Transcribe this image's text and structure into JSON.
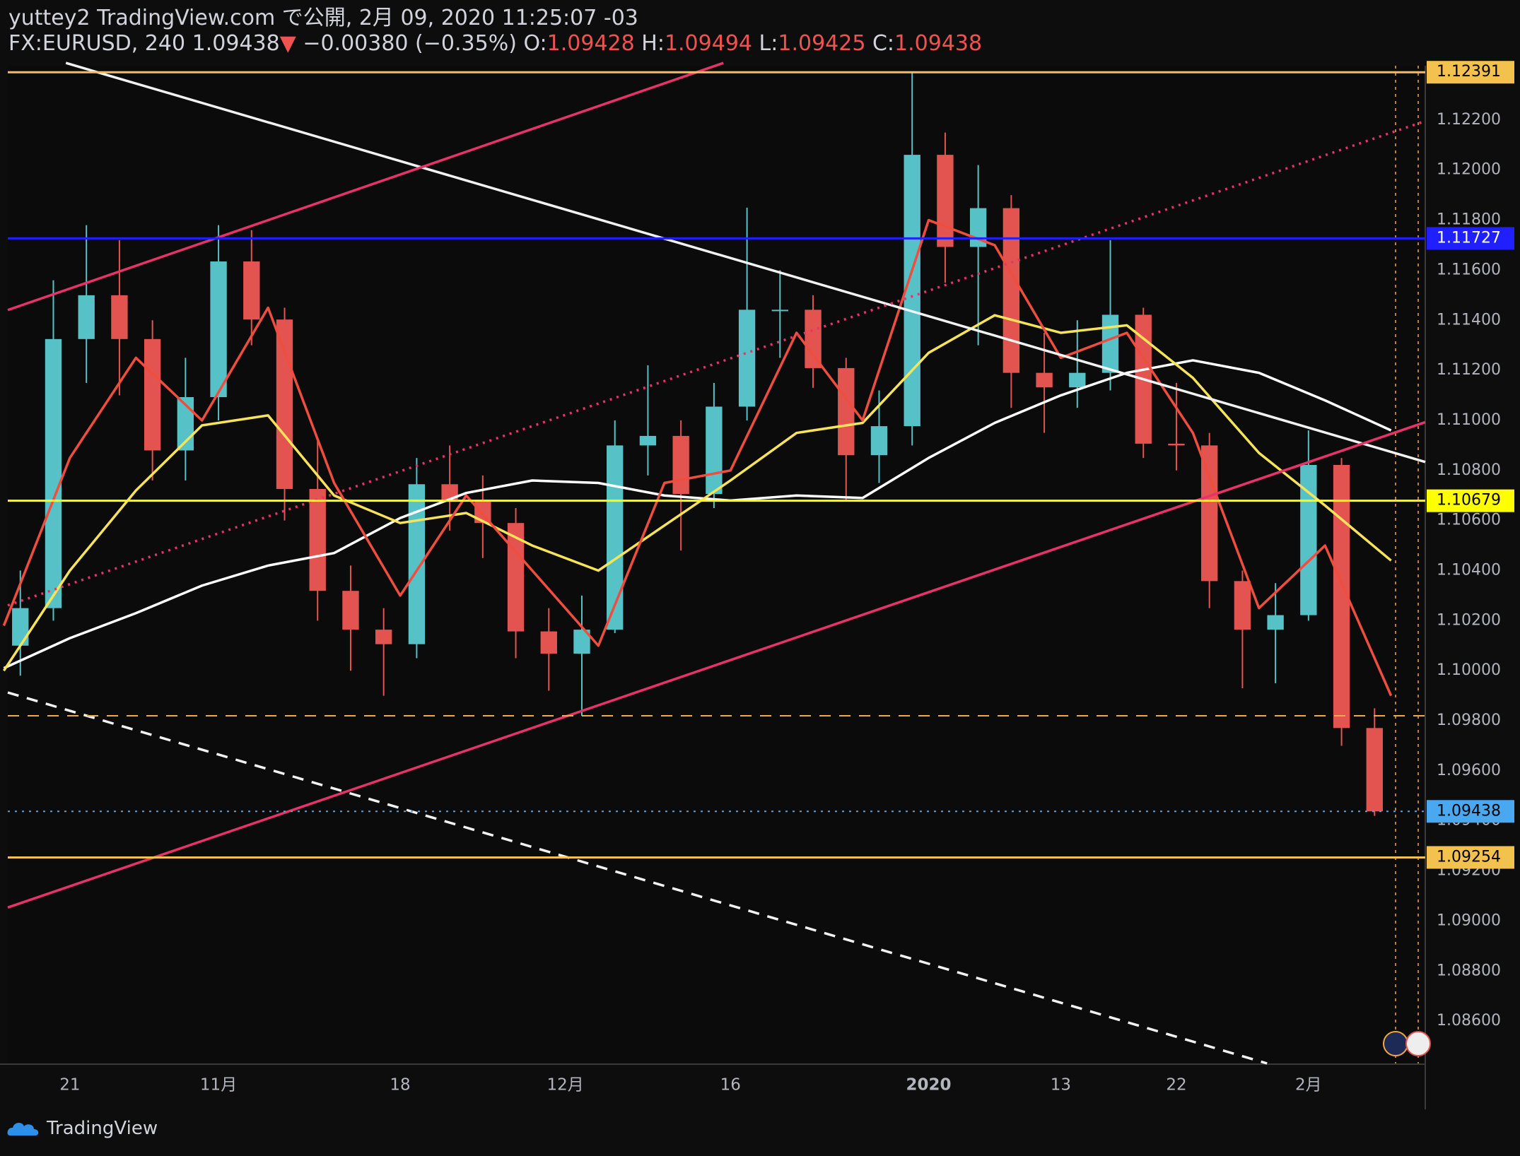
{
  "header": {
    "line1": "yuttey2 TradingView.com で公開, 2月 09, 2020 11:25:07 -03",
    "symbol": "FX:EURUSD, 240 1.09438",
    "arrow": "▼",
    "change": "−0.00380 (−0.35%)",
    "o_label": "O:",
    "o": "1.09428",
    "h_label": "H:",
    "h": "1.09494",
    "l_label": "L:",
    "l": "1.09425",
    "c_label": "C:",
    "c": "1.09438"
  },
  "footer": {
    "brand": "TradingView"
  },
  "chart_data": {
    "type": "candlestick",
    "up_color": "#56c2c8",
    "down_color": "#e35450",
    "x": [
      -3,
      -1,
      1,
      3,
      5,
      7,
      9,
      11,
      13,
      15,
      17,
      19,
      21,
      23,
      25,
      27,
      29,
      31,
      33,
      35,
      37,
      39,
      41,
      43,
      45,
      47,
      49,
      51,
      53,
      55,
      57,
      59,
      61,
      63,
      65,
      67,
      69,
      71,
      73,
      75,
      77,
      79
    ],
    "open": [
      1.101,
      1.1025,
      1.11325,
      1.115,
      1.11325,
      1.1088,
      1.11093,
      1.11635,
      1.11403,
      1.10726,
      1.10319,
      1.10164,
      1.10106,
      1.10745,
      1.10675,
      1.1059,
      1.10157,
      1.10068,
      1.10164,
      1.109,
      1.10938,
      1.10706,
      1.11055,
      1.11442,
      1.11442,
      1.11209,
      1.10861,
      1.10977,
      1.12061,
      1.11693,
      1.11848,
      1.1119,
      1.11132,
      1.1119,
      1.11422,
      1.10907,
      1.109,
      1.10358,
      1.10164,
      1.10222,
      1.10822,
      1.09771
    ],
    "high": [
      1.104,
      1.1156,
      1.1178,
      1.1172,
      1.114,
      1.1125,
      1.1178,
      1.1176,
      1.1145,
      1.1092,
      1.1042,
      1.1025,
      1.1085,
      1.109,
      1.1078,
      1.1065,
      1.1025,
      1.103,
      1.11,
      1.1122,
      1.11,
      1.1115,
      1.1185,
      1.116,
      1.115,
      1.1125,
      1.1112,
      1.12391,
      1.1215,
      1.1202,
      1.119,
      1.1135,
      1.114,
      1.1172,
      1.1145,
      1.1115,
      1.1095,
      1.104,
      1.1035,
      1.1096,
      1.1085,
      1.0985
    ],
    "low": [
      1.0998,
      1.102,
      1.1115,
      1.111,
      1.1076,
      1.1076,
      1.11,
      1.113,
      1.106,
      1.102,
      1.1,
      1.099,
      1.1005,
      1.1056,
      1.1045,
      1.1005,
      1.0992,
      1.0982,
      1.1015,
      1.1078,
      1.1048,
      1.1065,
      1.11,
      1.1125,
      1.1113,
      1.1068,
      1.1075,
      1.109,
      1.1155,
      1.113,
      1.1105,
      1.1095,
      1.1105,
      1.1112,
      1.1085,
      1.108,
      1.1025,
      1.0993,
      1.0995,
      1.102,
      1.097,
      1.0942
    ],
    "close": [
      1.1025,
      1.11325,
      1.115,
      1.11325,
      1.1088,
      1.11093,
      1.11635,
      1.11403,
      1.10726,
      1.10319,
      1.10164,
      1.10106,
      1.10745,
      1.10675,
      1.1059,
      1.10157,
      1.10068,
      1.10164,
      1.109,
      1.10938,
      1.10706,
      1.11055,
      1.11442,
      1.11442,
      1.11209,
      1.10861,
      1.10977,
      1.12061,
      1.11693,
      1.11848,
      1.1119,
      1.11132,
      1.1119,
      1.11422,
      1.10907,
      1.109,
      1.10358,
      1.10164,
      1.10222,
      1.10822,
      1.09771,
      1.09438
    ],
    "ma_x": [
      -4,
      0,
      4,
      8,
      12,
      16,
      20,
      24,
      28,
      32,
      36,
      40,
      44,
      48,
      52,
      56,
      60,
      64,
      68,
      72,
      76,
      80
    ],
    "moving_averages": [
      {
        "color": "#ffffff",
        "values": [
          1.1001,
          1.1013,
          1.1023,
          1.1034,
          1.1042,
          1.1047,
          1.1061,
          1.1071,
          1.1076,
          1.1075,
          1.107,
          1.1068,
          1.107,
          1.1069,
          1.1085,
          1.1099,
          1.111,
          1.1119,
          1.1124,
          1.1119,
          1.1108,
          1.1096
        ]
      },
      {
        "color": "#f7e35a",
        "values": [
          1.1,
          1.104,
          1.1072,
          1.1098,
          1.1102,
          1.107,
          1.1059,
          1.1063,
          1.105,
          1.104,
          1.1058,
          1.1076,
          1.1095,
          1.1099,
          1.1127,
          1.1142,
          1.1135,
          1.1138,
          1.1117,
          1.1087,
          1.1066,
          1.1044
        ]
      },
      {
        "color": "#ef4e3e",
        "values": [
          1.1018,
          1.1085,
          1.1125,
          1.11,
          1.1145,
          1.1075,
          1.103,
          1.107,
          1.104,
          1.101,
          1.1075,
          1.108,
          1.1135,
          1.11,
          1.118,
          1.117,
          1.1125,
          1.1135,
          1.1095,
          1.1025,
          1.105,
          1.099
        ]
      }
    ],
    "trendlines": [
      {
        "x": [
          -0.24,
          82.07
        ],
        "y": [
          1.12428,
          1.10834
        ],
        "color": "#f2f2f2",
        "style": "solid"
      },
      {
        "x": [
          -3.76,
          39.57
        ],
        "y": [
          1.11441,
          1.12428
        ],
        "color": "#e8336a",
        "style": "solid"
      },
      {
        "x": [
          -3.76,
          82.07
        ],
        "y": [
          1.09054,
          1.10993
        ],
        "color": "#e8336a",
        "style": "solid"
      },
      {
        "x": [
          -3.76,
          82.07
        ],
        "y": [
          1.10261,
          1.12196
        ],
        "color": "#e8336a",
        "style": "dotted"
      },
      {
        "x": [
          -3.76,
          72.49
        ],
        "y": [
          1.09913,
          1.08431
        ],
        "color": "#f2f2f2",
        "style": "dashed"
      }
    ],
    "levels": [
      {
        "value": 1.12391,
        "color": "#f3c24e",
        "style": "solid",
        "labeled": true,
        "text_color": "#000000"
      },
      {
        "value": 1.11727,
        "color": "#1f1fff",
        "style": "solid",
        "labeled": true,
        "text_color": "#ffffff"
      },
      {
        "value": 1.10679,
        "color": "#ffff00",
        "style": "solid",
        "labeled": true,
        "text_color": "#000000"
      },
      {
        "value": 1.0982,
        "color": "#f3a93e",
        "style": "dashed",
        "labeled": false,
        "text_color": "#000000"
      },
      {
        "value": 1.09438,
        "color": "#4aa8f0",
        "style": "dotted",
        "labeled": true,
        "text_color": "#000000"
      },
      {
        "value": 1.09254,
        "color": "#f3c24e",
        "style": "solid",
        "labeled": true,
        "text_color": "#000000"
      }
    ],
    "xlim": [
      -3.76,
      82.07
    ],
    "ylim": [
      1.08431,
      1.12417
    ],
    "xticks": [
      {
        "value": 0,
        "label": "21"
      },
      {
        "value": 9,
        "label": "11月"
      },
      {
        "value": 20,
        "label": "18"
      },
      {
        "value": 30,
        "label": "12月"
      },
      {
        "value": 40,
        "label": "16"
      },
      {
        "value": 52,
        "label": "2020"
      },
      {
        "value": 60,
        "label": "13"
      },
      {
        "value": 67,
        "label": "22"
      },
      {
        "value": 75,
        "label": "2月"
      }
    ],
    "yticks": [
      {
        "value": 1.086,
        "label": "1.08600"
      },
      {
        "value": 1.088,
        "label": "1.08800"
      },
      {
        "value": 1.09,
        "label": "1.09000"
      },
      {
        "value": 1.092,
        "label": "1.09200"
      },
      {
        "value": 1.094,
        "label": "1.09400"
      },
      {
        "value": 1.096,
        "label": "1.09600"
      },
      {
        "value": 1.098,
        "label": "1.09800"
      },
      {
        "value": 1.1,
        "label": "1.10000"
      },
      {
        "value": 1.102,
        "label": "1.10200"
      },
      {
        "value": 1.104,
        "label": "1.10400"
      },
      {
        "value": 1.106,
        "label": "1.10600"
      },
      {
        "value": 1.108,
        "label": "1.10800"
      },
      {
        "value": 1.11,
        "label": "1.11000"
      },
      {
        "value": 1.112,
        "label": "1.11200"
      },
      {
        "value": 1.114,
        "label": "1.11400"
      },
      {
        "value": 1.116,
        "label": "1.11600"
      },
      {
        "value": 1.118,
        "label": "1.11800"
      },
      {
        "value": 1.12,
        "label": "1.12000"
      },
      {
        "value": 1.122,
        "label": "1.12200"
      }
    ],
    "grid": false
  }
}
